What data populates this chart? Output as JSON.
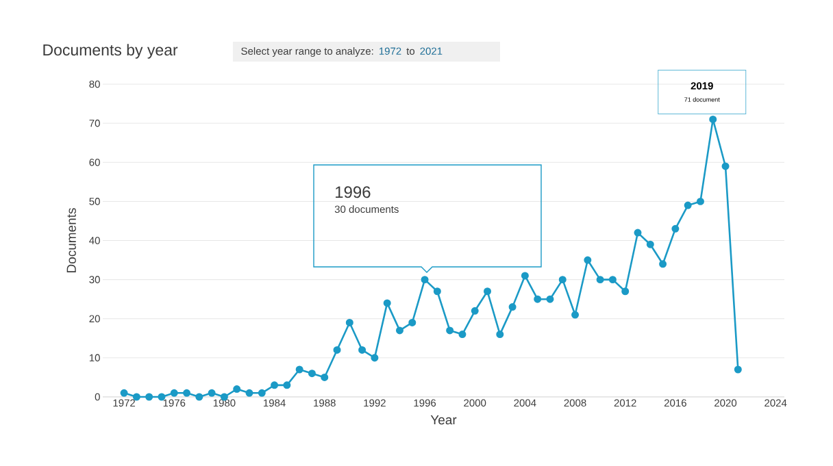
{
  "chart_data": {
    "type": "line",
    "title": "Documents by year",
    "xlabel": "Year",
    "ylabel": "Documents",
    "x": [
      1972,
      1973,
      1974,
      1975,
      1976,
      1977,
      1978,
      1979,
      1980,
      1981,
      1982,
      1983,
      1984,
      1985,
      1986,
      1987,
      1988,
      1989,
      1990,
      1991,
      1992,
      1993,
      1994,
      1995,
      1996,
      1997,
      1998,
      1999,
      2000,
      2001,
      2002,
      2003,
      2004,
      2005,
      2006,
      2007,
      2008,
      2009,
      2010,
      2011,
      2012,
      2013,
      2014,
      2015,
      2016,
      2017,
      2018,
      2019,
      2020,
      2021
    ],
    "series": [
      {
        "color": "#1b9ac6",
        "values": [
          1,
          0,
          0,
          0,
          1,
          1,
          0,
          1,
          0,
          2,
          1,
          1,
          3,
          3,
          7,
          6,
          5,
          12,
          19,
          12,
          10,
          24,
          17,
          19,
          30,
          27,
          17,
          16,
          22,
          27,
          16,
          23,
          31,
          25,
          25,
          30,
          21,
          35,
          30,
          30,
          27,
          42,
          39,
          34,
          43,
          49,
          50,
          71,
          59,
          7
        ]
      }
    ],
    "xlim": [
      1970.3,
      2024.7
    ],
    "ylim": [
      0,
      80
    ],
    "xticks": [
      1972,
      1976,
      1980,
      1984,
      1988,
      1992,
      1996,
      2000,
      2004,
      2008,
      2012,
      2016,
      2020,
      2024
    ],
    "yticks": [
      0,
      10,
      20,
      30,
      40,
      50,
      60,
      70,
      80
    ],
    "grid": "y",
    "marker": "circle",
    "line_style": "solid",
    "annotations": [
      "Select year range to analyze:",
      "1972",
      "to",
      "2021",
      "1996",
      "30 documents",
      {
        "text": "2019",
        "x": 2019,
        "y": 71
      },
      {
        "text": "71 document",
        "x": 2019,
        "y": 71
      }
    ]
  }
}
